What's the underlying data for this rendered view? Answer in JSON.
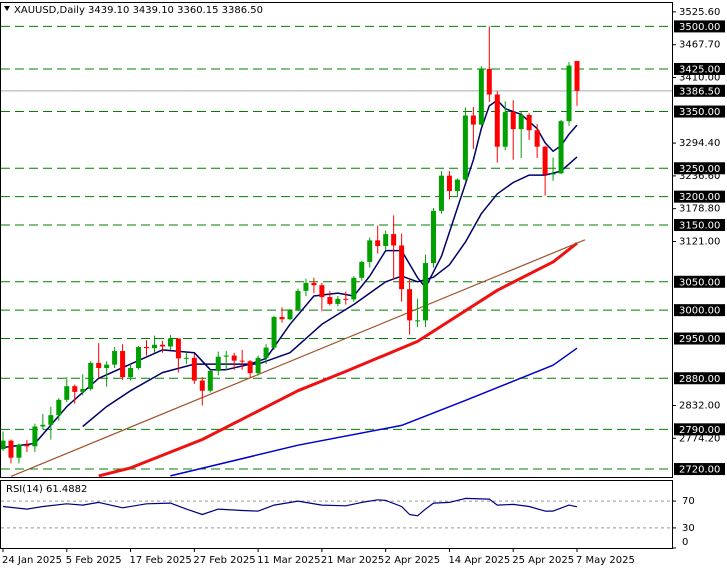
{
  "chart_data": {
    "type": "candlestick",
    "title": "XAUUSD,Daily  3439.10 3439.10 3360.15 3386.50",
    "categories": [
      "24 Jan 2025",
      null,
      null,
      null,
      null,
      null,
      null,
      null,
      "5 Feb 2025",
      null,
      null,
      null,
      null,
      null,
      null,
      null,
      "17 Feb 2025",
      null,
      null,
      null,
      null,
      null,
      null,
      null,
      "27 Feb 2025",
      null,
      null,
      null,
      null,
      null,
      null,
      null,
      "11 Mar 2025",
      null,
      null,
      null,
      null,
      null,
      null,
      null,
      "21 Mar 2025",
      null,
      null,
      null,
      null,
      null,
      null,
      null,
      "2 Apr 2025",
      null,
      null,
      null,
      null,
      null,
      null,
      null,
      "14 Apr 2025",
      null,
      null,
      null,
      null,
      null,
      null,
      null,
      "25 Apr 2025",
      null,
      null,
      null,
      null,
      null,
      null,
      null,
      "7 May 2025"
    ],
    "open": [
      2755,
      2770,
      2740,
      2763,
      2760,
      2795,
      2798,
      2815,
      2842,
      2866,
      2856,
      2861,
      2907,
      2898,
      2904,
      2928,
      2882,
      2898,
      2935,
      2933,
      2939,
      2936,
      2950,
      2915,
      2916,
      2876,
      2858,
      2893,
      2918,
      2920,
      2911,
      2910,
      2889,
      2916,
      2934,
      2988,
      2984,
      3001,
      3034,
      3048,
      3044,
      3023,
      3011,
      3020,
      3019,
      3057,
      3085,
      3123,
      3113,
      3134,
      3114,
      3037,
      2982,
      2982,
      3083,
      3175,
      3237,
      3210,
      3230,
      3343,
      3327,
      3425,
      3380,
      3288,
      3349,
      3319,
      3344,
      3317,
      3288,
      3239,
      3241,
      3333,
      3439.1
    ],
    "high": [
      2786,
      2772,
      2765,
      2771,
      2800,
      2817,
      2830,
      2845,
      2882,
      2869,
      2887,
      2910,
      2942,
      2910,
      2935,
      2940,
      2905,
      2937,
      2947,
      2955,
      2946,
      2956,
      2950,
      2925,
      2923,
      2882,
      2895,
      2927,
      2928,
      2925,
      2930,
      2912,
      2920,
      2940,
      2990,
      3005,
      3002,
      3038,
      3055,
      3057,
      3048,
      3034,
      3025,
      3033,
      3060,
      3087,
      3128,
      3149,
      3140,
      3167,
      3135,
      3055,
      3020,
      3098,
      3180,
      3245,
      3245,
      3232,
      3357,
      3358,
      3430,
      3500,
      3386,
      3368,
      3370,
      3350,
      3347,
      3328,
      3290,
      3269,
      3335,
      3437,
      3439.1
    ],
    "low": [
      2752,
      2730,
      2730,
      2750,
      2750,
      2790,
      2772,
      2805,
      2838,
      2835,
      2850,
      2858,
      2880,
      2865,
      2898,
      2877,
      2876,
      2895,
      2920,
      2925,
      2925,
      2930,
      2890,
      2905,
      2870,
      2832,
      2855,
      2885,
      2895,
      2895,
      2895,
      2880,
      2885,
      2905,
      2930,
      2978,
      2982,
      2998,
      3025,
      3030,
      2998,
      3008,
      3007,
      3010,
      3015,
      3052,
      3075,
      3100,
      3105,
      3054,
      3015,
      2957,
      2970,
      2970,
      3075,
      3170,
      3195,
      3200,
      3228,
      3284,
      3325,
      3367,
      3260,
      3282,
      3265,
      3268,
      3300,
      3268,
      3202,
      3228,
      3240,
      3325,
      3360.15
    ],
    "close": [
      2770,
      2740,
      2763,
      2760,
      2795,
      2798,
      2815,
      2842,
      2866,
      2856,
      2861,
      2907,
      2898,
      2904,
      2928,
      2882,
      2898,
      2935,
      2933,
      2939,
      2936,
      2950,
      2915,
      2916,
      2876,
      2858,
      2893,
      2918,
      2920,
      2911,
      2910,
      2889,
      2916,
      2934,
      2988,
      2984,
      3001,
      3034,
      3048,
      3044,
      3023,
      3011,
      3020,
      3019,
      3057,
      3085,
      3123,
      3113,
      3134,
      3114,
      3037,
      2982,
      2982,
      3083,
      3175,
      3237,
      3210,
      3230,
      3343,
      3327,
      3425,
      3380,
      3288,
      3349,
      3319,
      3344,
      3317,
      3288,
      3239,
      3241,
      3333,
      3431,
      3386.5
    ],
    "up_color": "#00a000",
    "down_color": "#ff0000",
    "ylim": [
      2706,
      3543
    ],
    "yticks": [
      {
        "value": 3525.6,
        "label": "3525.60"
      },
      {
        "value": 3467.7,
        "label": "3467.70"
      },
      {
        "value": 3410,
        "label": "3410.00"
      },
      {
        "value": 3294.4,
        "label": "3294.40"
      },
      {
        "value": 3236.6,
        "label": "3236.60"
      },
      {
        "value": 3178.8,
        "label": "3178.80"
      },
      {
        "value": 3121,
        "label": "3121.00"
      },
      {
        "value": 2832,
        "label": "2832.00"
      },
      {
        "value": 2774.2,
        "label": "2774.20"
      }
    ],
    "levels": [
      {
        "value": 3500,
        "label": "3500.00"
      },
      {
        "value": 3425,
        "label": "3425.00"
      },
      {
        "value": 3350,
        "label": "3350.00"
      },
      {
        "value": 3250,
        "label": "3250.00"
      },
      {
        "value": 3200,
        "label": "3200.00"
      },
      {
        "value": 3150,
        "label": "3150.00"
      },
      {
        "value": 3050,
        "label": "3050.00"
      },
      {
        "value": 3000,
        "label": "3000.00"
      },
      {
        "value": 2950,
        "label": "2950.00"
      },
      {
        "value": 2880,
        "label": "2880.00"
      },
      {
        "value": 2790,
        "label": "2790.00"
      },
      {
        "value": 2720,
        "label": "2720.00"
      }
    ],
    "level_color": "#008000",
    "last_price": {
      "value": 3386.5,
      "label": "3386.50"
    },
    "lines": [
      {
        "color": "#000066",
        "x": [
          0,
          4,
          8,
          12,
          16,
          20,
          24,
          26,
          28,
          31,
          33,
          36,
          39,
          42,
          44,
          46,
          48,
          50,
          52,
          53,
          55,
          57,
          59,
          60,
          61,
          62,
          63,
          65,
          67,
          68,
          69,
          70,
          71,
          72
        ],
        "values": [
          2758,
          2765,
          2830,
          2880,
          2905,
          2930,
          2925,
          2895,
          2895,
          2905,
          2915,
          2975,
          3025,
          3030,
          3025,
          3060,
          3105,
          3105,
          3057,
          3040,
          3095,
          3180,
          3265,
          3320,
          3360,
          3370,
          3355,
          3345,
          3320,
          3295,
          3280,
          3290,
          3310,
          3326
        ]
      },
      {
        "color": "#000066",
        "x": [
          10,
          13,
          16,
          20,
          24,
          28,
          32,
          36,
          40,
          44,
          48,
          50,
          52,
          54,
          56,
          58,
          60,
          62,
          64,
          66,
          68,
          70,
          72
        ],
        "values": [
          2795,
          2830,
          2858,
          2890,
          2905,
          2905,
          2905,
          2925,
          2975,
          3010,
          3050,
          3060,
          3050,
          3058,
          3080,
          3120,
          3170,
          3205,
          3225,
          3238,
          3238,
          3245,
          3270
        ]
      },
      {
        "color": "#ee1111",
        "x": [
          12,
          16,
          25,
          37,
          43,
          52,
          62,
          69,
          72
        ],
        "values": [
          2708,
          2722,
          2772,
          2858,
          2892,
          2945,
          3035,
          3085,
          3118
        ]
      },
      {
        "color": "#0000cc",
        "x": [
          21,
          37,
          50,
          58,
          69,
          72
        ],
        "values": [
          2708,
          2762,
          2797,
          2841,
          2903,
          2933
        ]
      },
      {
        "color": "#a0522d",
        "x": [
          1,
          73
        ],
        "values": [
          2707,
          3124
        ]
      }
    ],
    "rsi": {
      "title": "RSI(14) 61.4882",
      "color": "#000080",
      "ylim": [
        0,
        100
      ],
      "yticks": [
        70,
        30,
        0
      ],
      "x": [
        0,
        3,
        5,
        8,
        10,
        12,
        15,
        18,
        21,
        23,
        25,
        27,
        30,
        32,
        34,
        37,
        40,
        43,
        45,
        47,
        48,
        50,
        51,
        52,
        53,
        54,
        56,
        58,
        61,
        62,
        64,
        66,
        68,
        69,
        71,
        72
      ],
      "values": [
        62,
        58,
        62,
        66,
        64,
        68,
        60,
        66,
        67,
        58,
        50,
        58,
        56,
        55,
        64,
        70,
        64,
        63,
        68,
        72,
        71,
        62,
        50,
        48,
        58,
        67,
        68,
        74,
        73,
        64,
        65,
        62,
        55,
        55,
        64,
        61.4882
      ]
    }
  }
}
